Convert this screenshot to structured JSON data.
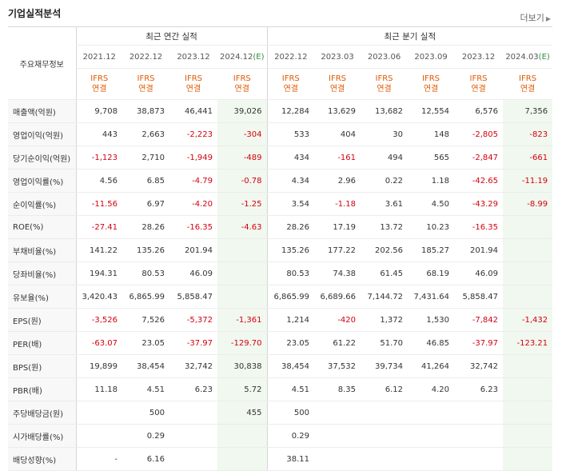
{
  "section_title": "기업실적분석",
  "more_label": "더보기",
  "header": {
    "label": "주요재무정보",
    "annual_group": "최근 연간 실적",
    "quarter_group": "최근 분기 실적",
    "annual_periods": [
      "2021.12",
      "2022.12",
      "2023.12",
      "2024.12"
    ],
    "annual_est": "(E)",
    "quarter_periods": [
      "2022.12",
      "2023.03",
      "2023.06",
      "2023.09",
      "2023.12",
      "2024.03"
    ],
    "quarter_est": "(E)",
    "ifrs_top": "IFRS",
    "ifrs_bottom": "연결"
  },
  "rows": [
    {
      "label": "매출액(억원)",
      "values": [
        "9,708",
        "38,873",
        "46,441",
        "39,026",
        "12,284",
        "13,629",
        "13,682",
        "12,554",
        "6,576",
        "7,356"
      ]
    },
    {
      "label": "영업이익(억원)",
      "values": [
        "443",
        "2,663",
        "-2,223",
        "-304",
        "533",
        "404",
        "30",
        "148",
        "-2,805",
        "-823"
      ]
    },
    {
      "label": "당기순이익(억원)",
      "values": [
        "-1,123",
        "2,710",
        "-1,949",
        "-489",
        "434",
        "-161",
        "494",
        "565",
        "-2,847",
        "-661"
      ]
    },
    {
      "label": "영업이익률(%)",
      "values": [
        "4.56",
        "6.85",
        "-4.79",
        "-0.78",
        "4.34",
        "2.96",
        "0.22",
        "1.18",
        "-42.65",
        "-11.19"
      ]
    },
    {
      "label": "순이익률(%)",
      "values": [
        "-11.56",
        "6.97",
        "-4.20",
        "-1.25",
        "3.54",
        "-1.18",
        "3.61",
        "4.50",
        "-43.29",
        "-8.99"
      ]
    },
    {
      "label": "ROE(%)",
      "values": [
        "-27.41",
        "28.26",
        "-16.35",
        "-4.63",
        "28.26",
        "17.19",
        "13.72",
        "10.23",
        "-16.35",
        ""
      ]
    },
    {
      "label": "부채비율(%)",
      "values": [
        "141.22",
        "135.26",
        "201.94",
        "",
        "135.26",
        "177.22",
        "202.56",
        "185.27",
        "201.94",
        ""
      ]
    },
    {
      "label": "당좌비율(%)",
      "values": [
        "194.31",
        "80.53",
        "46.09",
        "",
        "80.53",
        "74.38",
        "61.45",
        "68.19",
        "46.09",
        ""
      ]
    },
    {
      "label": "유보율(%)",
      "values": [
        "3,420.43",
        "6,865.99",
        "5,858.47",
        "",
        "6,865.99",
        "6,689.66",
        "7,144.72",
        "7,431.64",
        "5,858.47",
        ""
      ]
    },
    {
      "label": "EPS(원)",
      "values": [
        "-3,526",
        "7,526",
        "-5,372",
        "-1,361",
        "1,214",
        "-420",
        "1,372",
        "1,530",
        "-7,842",
        "-1,432"
      ]
    },
    {
      "label": "PER(배)",
      "values": [
        "-63.07",
        "23.05",
        "-37.97",
        "-129.70",
        "23.05",
        "61.22",
        "51.70",
        "46.85",
        "-37.97",
        "-123.21"
      ]
    },
    {
      "label": "BPS(원)",
      "values": [
        "19,899",
        "38,454",
        "32,742",
        "30,838",
        "38,454",
        "37,532",
        "39,734",
        "41,264",
        "32,742",
        ""
      ]
    },
    {
      "label": "PBR(배)",
      "values": [
        "11.18",
        "4.51",
        "6.23",
        "5.72",
        "4.51",
        "8.35",
        "6.12",
        "4.20",
        "6.23",
        ""
      ]
    },
    {
      "label": "주당배당금(원)",
      "values": [
        "",
        "500",
        "",
        "455",
        "500",
        "",
        "",
        "",
        "",
        ""
      ]
    },
    {
      "label": "시가배당률(%)",
      "values": [
        "",
        "0.29",
        "",
        "",
        "0.29",
        "",
        "",
        "",
        "",
        ""
      ]
    },
    {
      "label": "배당성향(%)",
      "values": [
        "-",
        "6.16",
        "",
        "",
        "38.11",
        "",
        "",
        "",
        "",
        ""
      ]
    }
  ]
}
